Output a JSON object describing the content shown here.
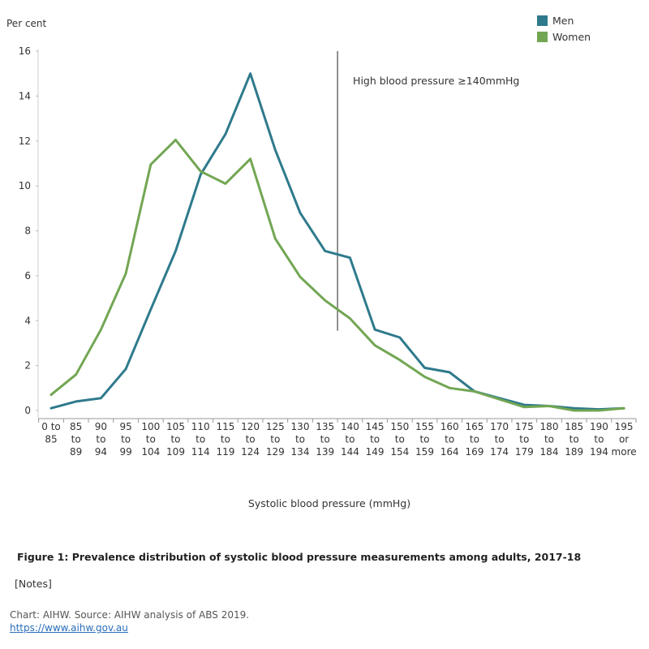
{
  "chart_data": {
    "type": "line",
    "ylabel": "Per cent",
    "xlabel": "Systolic blood pressure (mmHg)",
    "ylim": [
      0,
      16
    ],
    "yticks": [
      0,
      2,
      4,
      6,
      8,
      10,
      12,
      14,
      16
    ],
    "categories": [
      [
        "0 to",
        "85"
      ],
      [
        "85",
        "to",
        "89"
      ],
      [
        "90",
        "to",
        "94"
      ],
      [
        "95",
        "to",
        "99"
      ],
      [
        "100",
        "to",
        "104"
      ],
      [
        "105",
        "to",
        "109"
      ],
      [
        "110",
        "to",
        "114"
      ],
      [
        "115",
        "to",
        "119"
      ],
      [
        "120",
        "to",
        "124"
      ],
      [
        "125",
        "to",
        "129"
      ],
      [
        "130",
        "to",
        "134"
      ],
      [
        "135",
        "to",
        "139"
      ],
      [
        "140",
        "to",
        "144"
      ],
      [
        "145",
        "to",
        "149"
      ],
      [
        "150",
        "to",
        "154"
      ],
      [
        "155",
        "to",
        "159"
      ],
      [
        "160",
        "to",
        "164"
      ],
      [
        "165",
        "to",
        "169"
      ],
      [
        "170",
        "to",
        "174"
      ],
      [
        "175",
        "to",
        "179"
      ],
      [
        "180",
        "to",
        "184"
      ],
      [
        "185",
        "to",
        "189"
      ],
      [
        "190",
        "to",
        "194"
      ],
      [
        "195",
        "or",
        "more"
      ]
    ],
    "series": [
      {
        "name": "Men",
        "color": "#2e7a8c",
        "values": [
          0.1,
          0.4,
          0.55,
          1.85,
          4.5,
          7.1,
          10.5,
          12.3,
          15.0,
          11.6,
          8.8,
          7.1,
          6.8,
          3.6,
          3.25,
          1.9,
          1.7,
          0.85,
          0.55,
          0.25,
          0.2,
          0.1,
          0.05,
          0.1
        ]
      },
      {
        "name": "Women",
        "color": "#72a653",
        "values": [
          0.7,
          1.6,
          3.6,
          6.1,
          10.95,
          12.05,
          10.65,
          10.1,
          11.2,
          7.65,
          5.95,
          4.9,
          4.1,
          2.9,
          2.25,
          1.5,
          1.0,
          0.85,
          0.5,
          0.15,
          0.2,
          0.0,
          0.0,
          0.1
        ]
      }
    ],
    "reference_line": {
      "at_category_index": 11.5,
      "label": "High blood pressure ≥140mmHg"
    },
    "legend_position": "top-right",
    "grid": false
  },
  "caption": "Figure 1: Prevalence distribution of systolic blood pressure measurements among adults, 2017-18",
  "notes_label": "[Notes]",
  "source": "Chart: AIHW. Source: AIHW analysis of ABS 2019.",
  "link_text": "https://www.aihw.gov.au"
}
